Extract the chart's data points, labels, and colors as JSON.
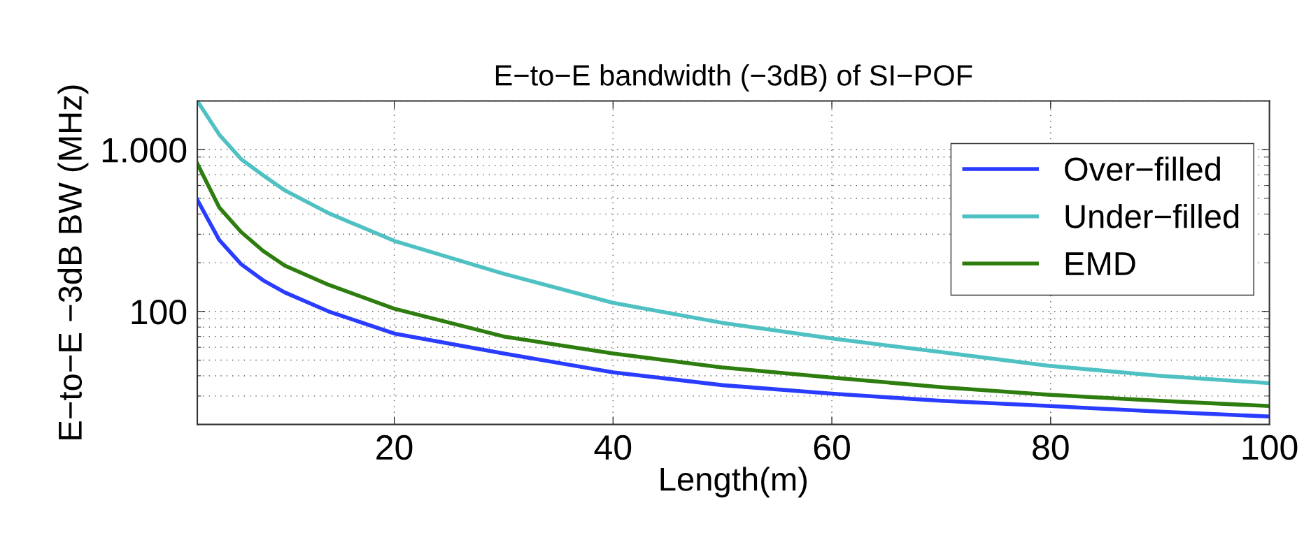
{
  "chart_data": {
    "type": "line",
    "title": "E−to−E bandwidth (−3dB) of SI−POF",
    "xlabel": "Length(m)",
    "ylabel": "E−to−E −3dB BW (MHz)",
    "x": [
      2,
      4,
      6,
      8,
      10,
      14,
      20,
      30,
      40,
      50,
      60,
      70,
      80,
      90,
      100
    ],
    "series": [
      {
        "name": "Over−filled",
        "color": "#2a3cff",
        "values": [
          490,
          277,
          196,
          156,
          131,
          100,
          73,
          55,
          42,
          35,
          31,
          28,
          26,
          24,
          22.4
        ]
      },
      {
        "name": "Under−filled",
        "color": "#4fc1c3",
        "values": [
          2000,
          1240,
          875,
          695,
          560,
          405,
          273,
          171,
          113,
          85,
          68,
          56,
          46,
          40,
          36
        ]
      },
      {
        "name": "EMD",
        "color": "#2e7d0f",
        "values": [
          820,
          440,
          310,
          237,
          192,
          146,
          104,
          70,
          55,
          45,
          39,
          34,
          30.5,
          28,
          26
        ]
      }
    ],
    "log": "y",
    "xlim": [
      2,
      100
    ],
    "xticks": [
      20,
      40,
      60,
      80,
      100
    ],
    "ylim": [
      20,
      2000
    ],
    "yticks": [
      100,
      {
        "value": 1000,
        "label": "1.000"
      }
    ],
    "grid": true,
    "legend": "top right",
    "line_style": "solid"
  }
}
